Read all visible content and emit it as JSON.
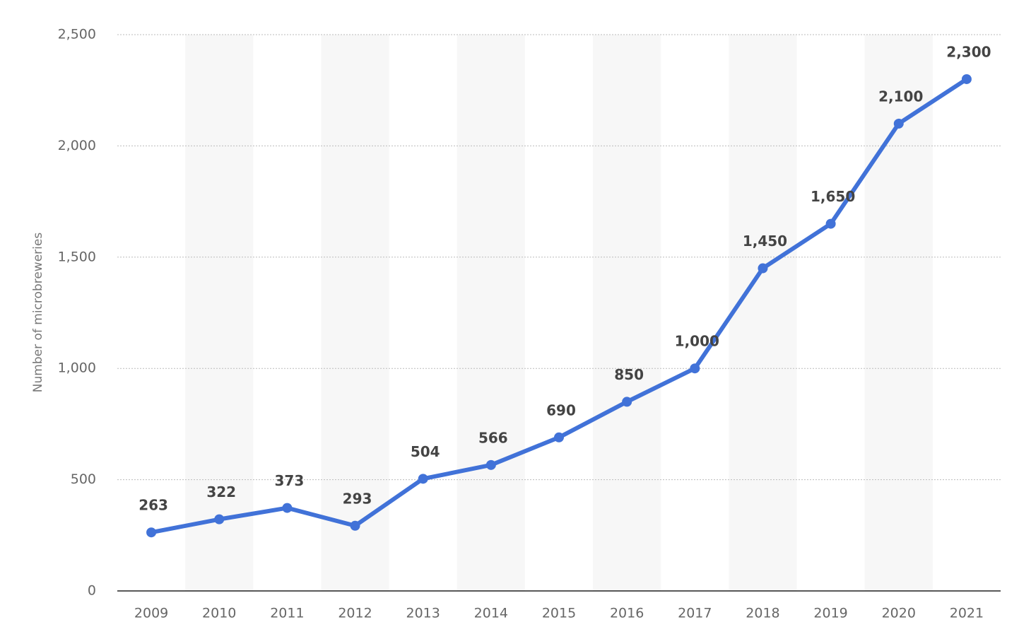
{
  "chart_data": {
    "type": "line",
    "y_label": "Number of microbreweries",
    "categories": [
      "2009",
      "2010",
      "2011",
      "2012",
      "2013",
      "2014",
      "2015",
      "2016",
      "2017",
      "2018",
      "2019",
      "2020",
      "2021"
    ],
    "values": [
      263,
      322,
      373,
      293,
      504,
      566,
      690,
      850,
      1000,
      1450,
      1650,
      2100,
      2300
    ],
    "value_labels": [
      "263",
      "322",
      "373",
      "293",
      "504",
      "566",
      "690",
      "850",
      "1,000",
      "1,450",
      "1,650",
      "2,100",
      "2,300"
    ],
    "color": "#4172d8",
    "ylim": [
      0,
      2500
    ],
    "yticks": [
      0,
      500,
      {
        "value": 1000,
        "label": "1,000"
      },
      {
        "value": 1500,
        "label": "1,500"
      },
      {
        "value": 2000,
        "label": "2,000"
      },
      {
        "value": 2500,
        "label": "2,500"
      }
    ],
    "grid": true
  }
}
